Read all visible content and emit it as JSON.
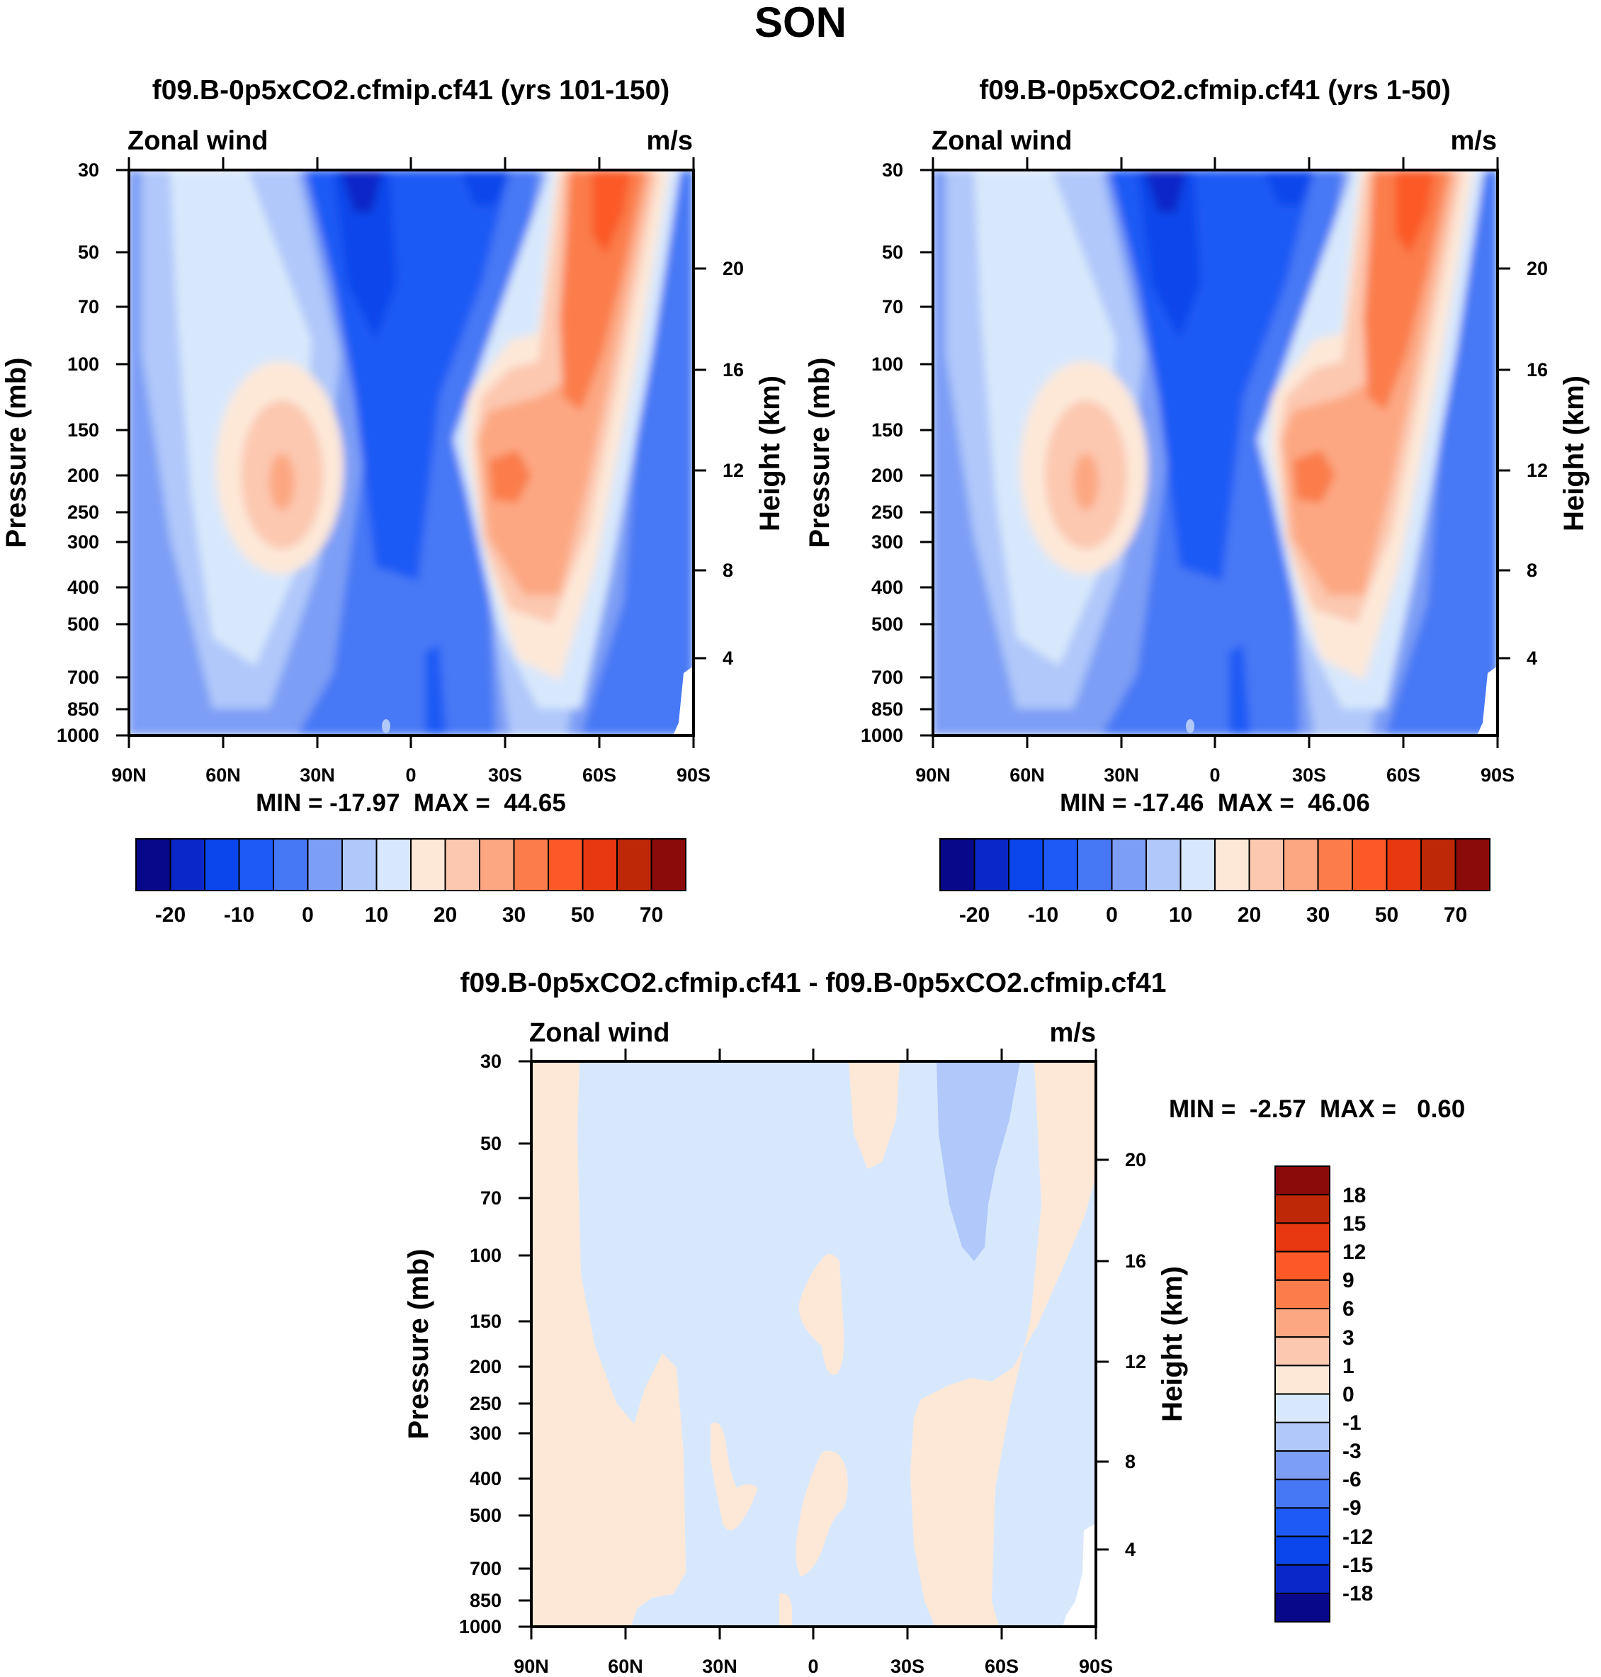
{
  "page_title": "SON",
  "chart_data": [
    {
      "type": "contour",
      "title": "f09.B-0p5xCO2.cfmip.cf41 (yrs 101-150)",
      "subtitle_left": "Zonal wind",
      "subtitle_right": "m/s",
      "ylabel": "Pressure (mb)",
      "ylabel_right": "Height (km)",
      "x_ticks": [
        "90N",
        "60N",
        "30N",
        "0",
        "30S",
        "60S",
        "90S"
      ],
      "x_range": [
        90,
        -90
      ],
      "pressure_ticks": [
        "30",
        "50",
        "70",
        "100",
        "150",
        "200",
        "250",
        "300",
        "400",
        "500",
        "700",
        "850",
        "1000"
      ],
      "pressure_range": [
        30,
        1000
      ],
      "height_ticks": [
        "20",
        "16",
        "12",
        "8",
        "4"
      ],
      "stats": "MIN = -17.97  MAX =  44.65",
      "levels": [
        -25,
        -20,
        -15,
        -10,
        -5,
        0,
        5,
        10,
        15,
        20,
        25,
        30,
        40,
        50,
        60,
        70
      ],
      "colorbar_labels": [
        "-20",
        "-10",
        "0",
        "10",
        "20",
        "30",
        "50",
        "70"
      ],
      "colors": [
        "#08088a",
        "#0a28c8",
        "#0a46eb",
        "#1e5af5",
        "#4678f5",
        "#7d9ef5",
        "#b0c8fa",
        "#d8e8fc",
        "#fde8d8",
        "#fcc8b0",
        "#fca782",
        "#fb7d4b",
        "#fb5a28",
        "#e8380f",
        "#bf2807",
        "#8b0a0a"
      ]
    },
    {
      "type": "contour",
      "title": "f09.B-0p5xCO2.cfmip.cf41 (yrs 1-50)",
      "subtitle_left": "Zonal wind",
      "subtitle_right": "m/s",
      "ylabel": "Pressure (mb)",
      "ylabel_right": "Height (km)",
      "x_ticks": [
        "90N",
        "60N",
        "30N",
        "0",
        "30S",
        "60S",
        "90S"
      ],
      "x_range": [
        90,
        -90
      ],
      "pressure_ticks": [
        "30",
        "50",
        "70",
        "100",
        "150",
        "200",
        "250",
        "300",
        "400",
        "500",
        "700",
        "850",
        "1000"
      ],
      "pressure_range": [
        30,
        1000
      ],
      "height_ticks": [
        "20",
        "16",
        "12",
        "8",
        "4"
      ],
      "stats": "MIN = -17.46  MAX =  46.06",
      "levels": [
        -25,
        -20,
        -15,
        -10,
        -5,
        0,
        5,
        10,
        15,
        20,
        25,
        30,
        40,
        50,
        60,
        70
      ],
      "colorbar_labels": [
        "-20",
        "-10",
        "0",
        "10",
        "20",
        "30",
        "50",
        "70"
      ],
      "colors": [
        "#08088a",
        "#0a28c8",
        "#0a46eb",
        "#1e5af5",
        "#4678f5",
        "#7d9ef5",
        "#b0c8fa",
        "#d8e8fc",
        "#fde8d8",
        "#fcc8b0",
        "#fca782",
        "#fb7d4b",
        "#fb5a28",
        "#e8380f",
        "#bf2807",
        "#8b0a0a"
      ]
    },
    {
      "type": "contour",
      "title": "f09.B-0p5xCO2.cfmip.cf41 - f09.B-0p5xCO2.cfmip.cf41",
      "subtitle_left": "Zonal wind",
      "subtitle_right": "m/s",
      "ylabel": "Pressure (mb)",
      "ylabel_right": "Height (km)",
      "x_ticks": [
        "90N",
        "60N",
        "30N",
        "0",
        "30S",
        "60S",
        "90S"
      ],
      "x_range": [
        90,
        -90
      ],
      "pressure_ticks": [
        "30",
        "50",
        "70",
        "100",
        "150",
        "200",
        "250",
        "300",
        "400",
        "500",
        "700",
        "850",
        "1000"
      ],
      "pressure_range": [
        30,
        1000
      ],
      "height_ticks": [
        "20",
        "16",
        "12",
        "8",
        "4"
      ],
      "stats": "MIN =  -2.57  MAX =   0.60",
      "levels": [
        18,
        15,
        12,
        9,
        6,
        3,
        1,
        0,
        -1,
        -3,
        -6,
        -9,
        -12,
        -15,
        -18
      ],
      "colorbar_labels": [
        "18",
        "15",
        "12",
        "9",
        "6",
        "3",
        "1",
        "0",
        "-1",
        "-3",
        "-6",
        "-9",
        "-12",
        "-15",
        "-18"
      ],
      "colors": [
        "#8b0a0a",
        "#bf2807",
        "#e8380f",
        "#fb5a28",
        "#fb7d4b",
        "#fca782",
        "#fcc8b0",
        "#fde8d8",
        "#d8e8fc",
        "#b0c8fa",
        "#7d9ef5",
        "#4678f5",
        "#1e5af5",
        "#0a46eb",
        "#0a28c8",
        "#08088a"
      ]
    }
  ]
}
